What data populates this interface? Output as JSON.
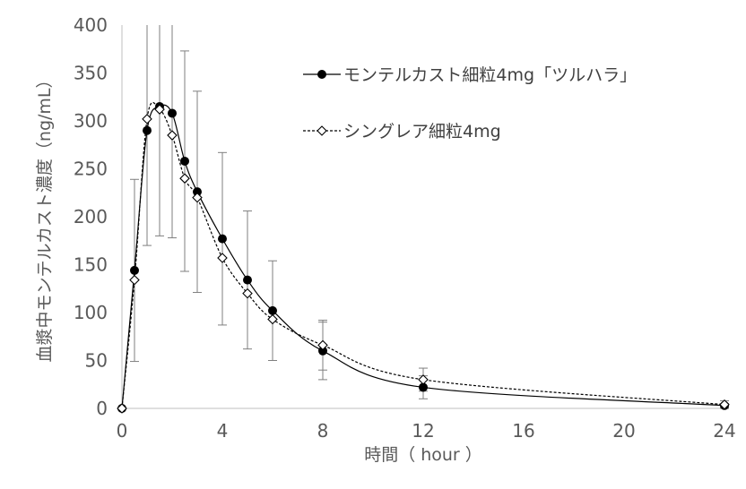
{
  "chart_data": {
    "type": "line",
    "title": "",
    "xlabel": "時間（ hour ）",
    "ylabel": "血漿中モンテルカスト濃度（ng/mL）",
    "xlim": [
      0,
      24
    ],
    "ylim": [
      0,
      400
    ],
    "x_ticks": [
      "0",
      "4",
      "8",
      "12",
      "16",
      "20",
      "24"
    ],
    "y_ticks": [
      "0",
      "50",
      "100",
      "150",
      "200",
      "250",
      "300",
      "350",
      "400"
    ],
    "grid": false,
    "legend_position": "top-right",
    "series": [
      {
        "name": "モンテルカスト細粒4mg「ツルハラ」",
        "marker": "filled-circle",
        "line_style": "solid",
        "color": "#000000",
        "x": [
          0,
          0.5,
          1,
          1.5,
          2,
          2.5,
          3,
          4,
          5,
          6,
          8,
          12,
          24
        ],
        "y": [
          0,
          144,
          290,
          315,
          308,
          258,
          226,
          177,
          134,
          102,
          60,
          22,
          3
        ],
        "error": [
          0,
          95,
          120,
          135,
          130,
          115,
          105,
          90,
          72,
          52,
          30,
          12,
          2
        ]
      },
      {
        "name": "シングレア細粒4mg",
        "marker": "open-diamond",
        "line_style": "dashed",
        "color": "#000000",
        "x": [
          0,
          0.5,
          1,
          1.5,
          2,
          2.5,
          3,
          4,
          5,
          6,
          8,
          12,
          24
        ],
        "y": [
          0,
          134,
          302,
          312,
          285,
          240,
          220,
          157,
          120,
          93,
          66,
          30,
          4
        ],
        "error": [
          0,
          0,
          0,
          0,
          0,
          0,
          0,
          0,
          0,
          0,
          26,
          12,
          4
        ]
      }
    ]
  }
}
